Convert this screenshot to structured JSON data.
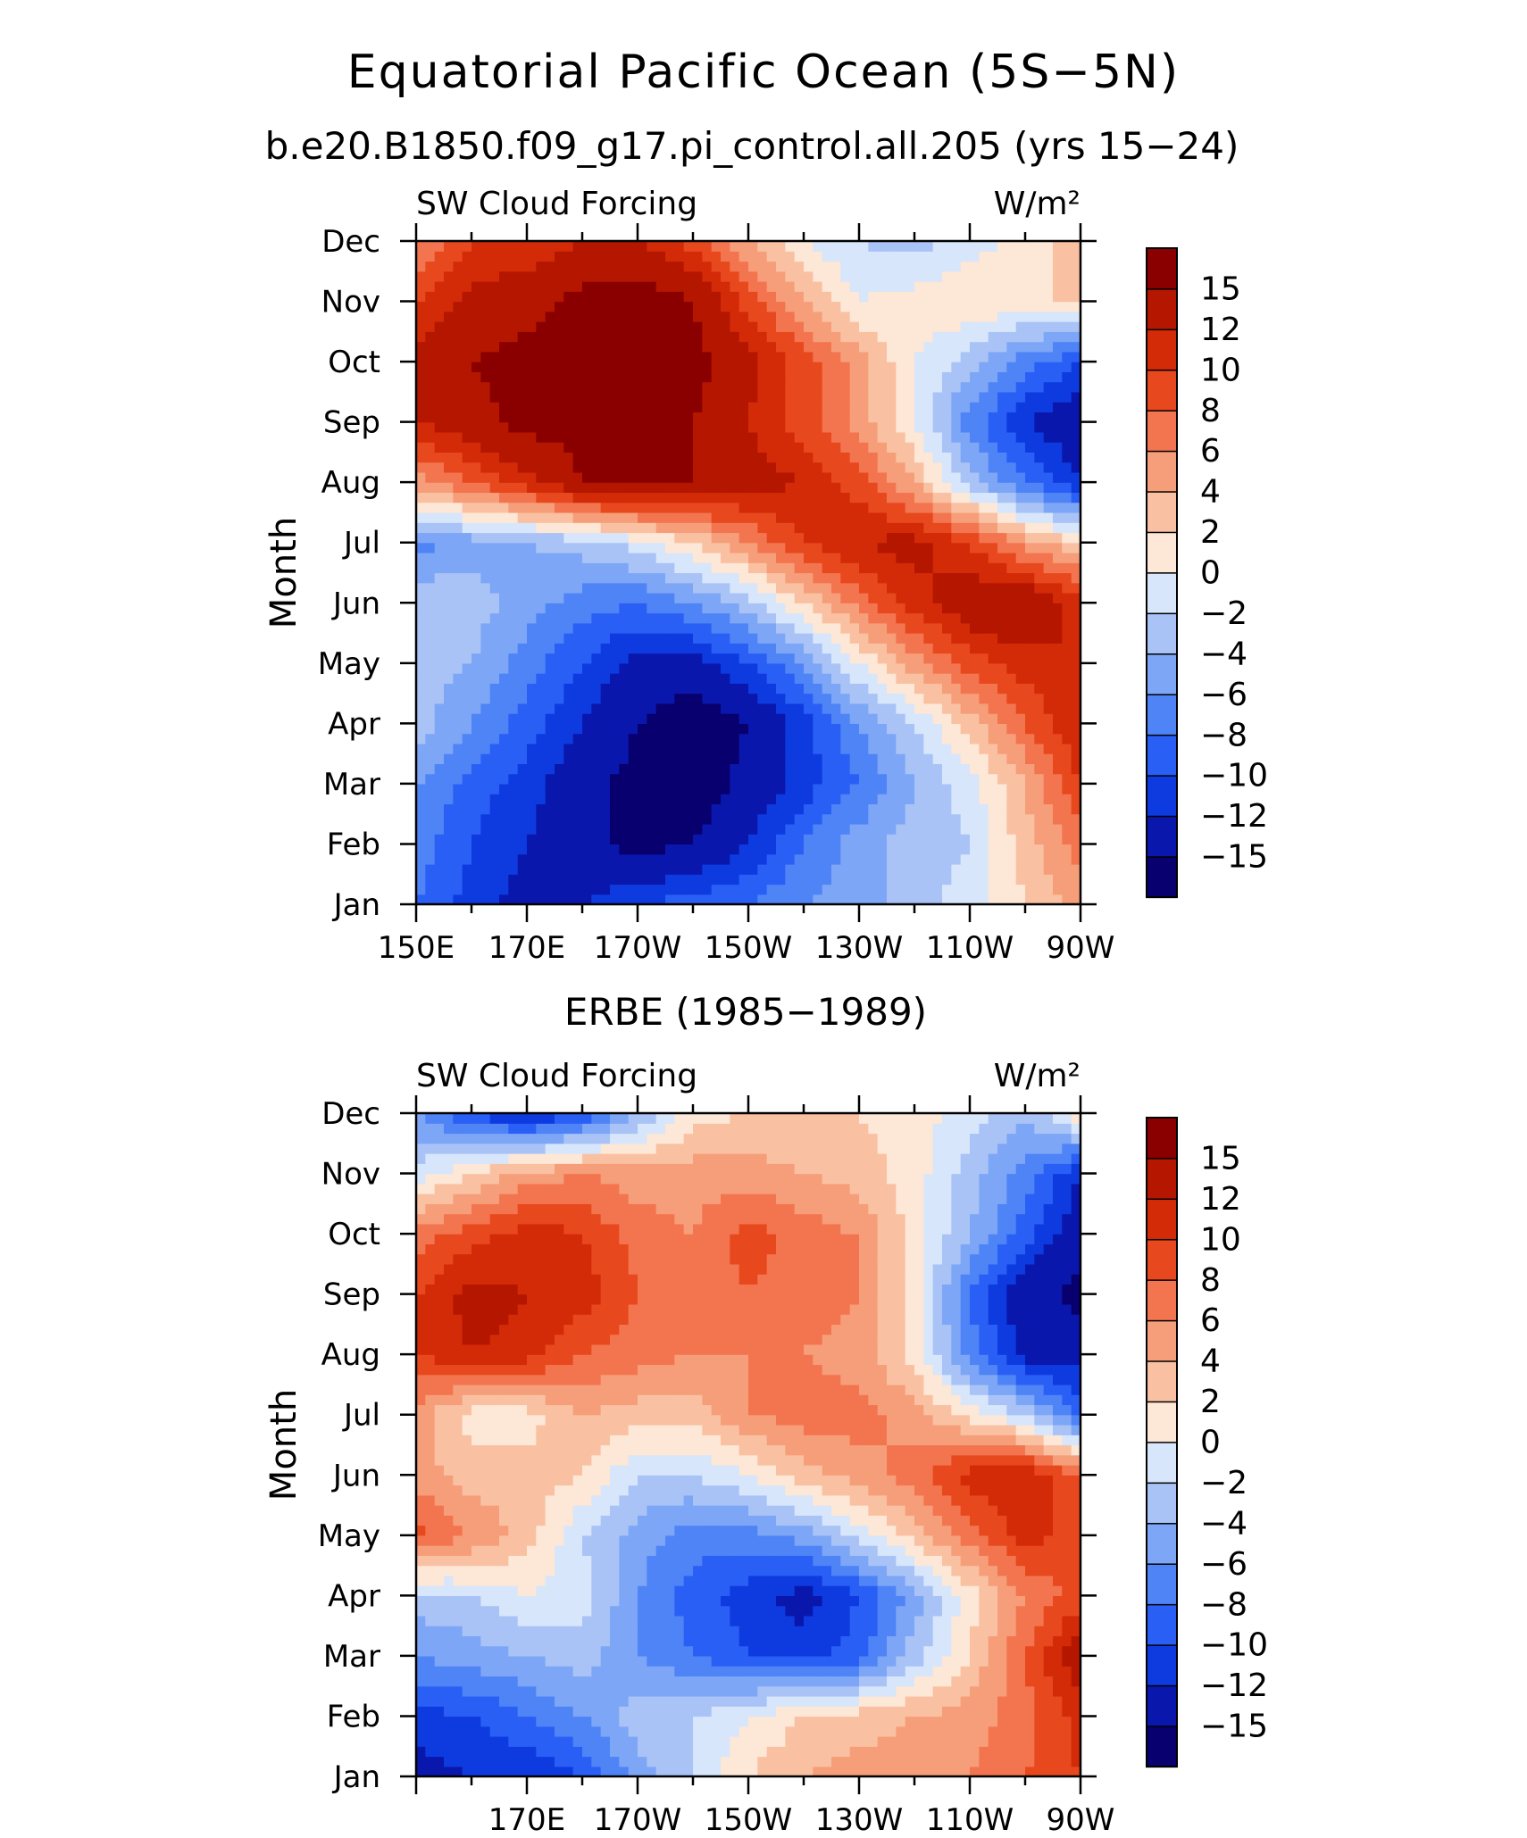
{
  "title": "Equatorial Pacific Ocean (5S−5N)",
  "subtitle": "b.e20.B1850.f09_g17.pi_control.all.205 (yrs 15−24)",
  "colors": {
    "palette": [
      "#08006f",
      "#0a17ad",
      "#0e3be0",
      "#2a5ff6",
      "#4f84f7",
      "#7ea6f6",
      "#a9c3f6",
      "#d7e6fb",
      "#fde7d6",
      "#f9c1a2",
      "#f69e79",
      "#f3754f",
      "#e8481d",
      "#d32a08",
      "#b51600",
      "#8a0000"
    ]
  },
  "chart_data": [
    {
      "type": "heatmap",
      "name": "model",
      "title": "SW Cloud Forcing",
      "units": "W/m²",
      "section_title": "",
      "xlabel": "",
      "ylabel": "Month",
      "x_ticks": [
        "150E",
        "170E",
        "170W",
        "150W",
        "130W",
        "110W",
        "90W"
      ],
      "y_ticks": [
        "Jan",
        "Feb",
        "Mar",
        "Apr",
        "May",
        "Jun",
        "Jul",
        "Aug",
        "Sep",
        "Oct",
        "Nov",
        "Dec"
      ],
      "xlim": [
        150,
        270
      ],
      "x": [
        150,
        160,
        170,
        180,
        190,
        200,
        210,
        220,
        230,
        240,
        250,
        260,
        270
      ],
      "colorbar_levels": [
        -15,
        -12,
        -10,
        -8,
        -6,
        -4,
        -2,
        0,
        2,
        4,
        6,
        8,
        10,
        12,
        15
      ],
      "colorbar_labels": [
        "15",
        "12",
        "10",
        "8",
        "6",
        "4",
        "2",
        "0",
        "−2",
        "−4",
        "−6",
        "−8",
        "−10",
        "−12",
        "−15"
      ],
      "z": [
        [
          -8,
          -11,
          -13,
          -12,
          -10,
          -9,
          -8,
          -6,
          -5,
          -3,
          -1,
          2,
          5
        ],
        [
          -7,
          -10,
          -12,
          -14,
          -16,
          -15,
          -12,
          -8,
          -5,
          -3,
          -2,
          3,
          7
        ],
        [
          -6,
          -9,
          -11,
          -14,
          -16,
          -17,
          -14,
          -11,
          -8,
          -4,
          -1,
          4,
          10
        ],
        [
          -3,
          -6,
          -9,
          -12,
          -15,
          -17,
          -15,
          -11,
          -6,
          -2,
          3,
          8,
          12
        ],
        [
          -3,
          -4,
          -7,
          -10,
          -13,
          -13,
          -10,
          -6,
          0,
          5,
          9,
          11,
          12
        ],
        [
          -2,
          -3,
          -5,
          -7,
          -8,
          -6,
          -3,
          2,
          7,
          11,
          14,
          15,
          11
        ],
        [
          -7,
          -5,
          -4,
          -3,
          -1,
          2,
          6,
          10,
          12,
          13,
          10,
          5,
          2
        ],
        [
          5,
          8,
          11,
          15,
          16,
          15,
          13,
          12,
          9,
          4,
          -3,
          -8,
          -12
        ],
        [
          12,
          14,
          16,
          16,
          16,
          15,
          12,
          9,
          5,
          0,
          -7,
          -12,
          -14
        ],
        [
          13,
          15,
          16,
          17,
          17,
          16,
          13,
          9,
          5,
          0,
          -3,
          -7,
          -10
        ],
        [
          10,
          13,
          14,
          16,
          17,
          15,
          9,
          4,
          0,
          1,
          2,
          1,
          3
        ],
        [
          6,
          10,
          10,
          12,
          12,
          9,
          4,
          0,
          -2,
          -3,
          -1,
          1,
          3
        ]
      ]
    },
    {
      "type": "heatmap",
      "name": "obs",
      "title": "SW Cloud Forcing",
      "units": "W/m²",
      "section_title": "ERBE (1985−1989)",
      "xlabel": "",
      "ylabel": "Month",
      "x_ticks": [
        "170E",
        "170W",
        "150W",
        "130W",
        "110W",
        "90W"
      ],
      "y_ticks": [
        "Jan",
        "Feb",
        "Mar",
        "Apr",
        "May",
        "Jun",
        "Jul",
        "Aug",
        "Sep",
        "Oct",
        "Nov",
        "Dec"
      ],
      "xlim": [
        150,
        270
      ],
      "x": [
        150,
        160,
        170,
        180,
        190,
        200,
        210,
        220,
        230,
        240,
        250,
        260,
        270
      ],
      "colorbar_levels": [
        -15,
        -12,
        -10,
        -8,
        -6,
        -4,
        -2,
        0,
        2,
        4,
        6,
        8,
        10,
        12,
        15
      ],
      "colorbar_labels": [
        "15",
        "12",
        "10",
        "8",
        "6",
        "4",
        "2",
        "0",
        "−2",
        "−4",
        "−6",
        "−8",
        "−10",
        "−12",
        "−15"
      ],
      "z": [
        [
          -13,
          -12,
          -12,
          -10,
          -5,
          -2,
          2,
          4,
          5,
          5,
          6,
          8,
          10
        ],
        [
          -11,
          -10,
          -8,
          -6,
          -3,
          -2,
          0,
          2,
          3,
          4,
          5,
          7,
          11
        ],
        [
          -6,
          -5,
          -4,
          -3,
          -6,
          -8,
          -10,
          -11,
          -9,
          -3,
          2,
          8,
          14
        ],
        [
          -3,
          -2,
          0,
          -1,
          -6,
          -9,
          -11,
          -13,
          -10,
          -5,
          1,
          6,
          9
        ],
        [
          9,
          6,
          3,
          -2,
          -5,
          -7,
          -7,
          -5,
          -1,
          3,
          7,
          11,
          9
        ],
        [
          5,
          3,
          3,
          2,
          -2,
          -2,
          0,
          3,
          5,
          7,
          11,
          12,
          8
        ],
        [
          5,
          1,
          1,
          4,
          3,
          3,
          6,
          7,
          7,
          5,
          1,
          -2,
          -9
        ],
        [
          10,
          12,
          11,
          8,
          7,
          6,
          6,
          6,
          5,
          1,
          -7,
          -13,
          -13
        ],
        [
          10,
          13,
          12,
          11,
          8,
          7,
          8,
          7,
          6,
          1,
          -8,
          -14,
          -16
        ],
        [
          7,
          9,
          11,
          10,
          7,
          6,
          9,
          7,
          6,
          1,
          -4,
          -9,
          -14
        ],
        [
          -1,
          2,
          5,
          6,
          5,
          5,
          5,
          4,
          3,
          1,
          -3,
          -7,
          -12
        ],
        [
          -6,
          -10,
          -13,
          -10,
          -4,
          1,
          2,
          2,
          2,
          1,
          -1,
          -4,
          2
        ]
      ]
    }
  ]
}
